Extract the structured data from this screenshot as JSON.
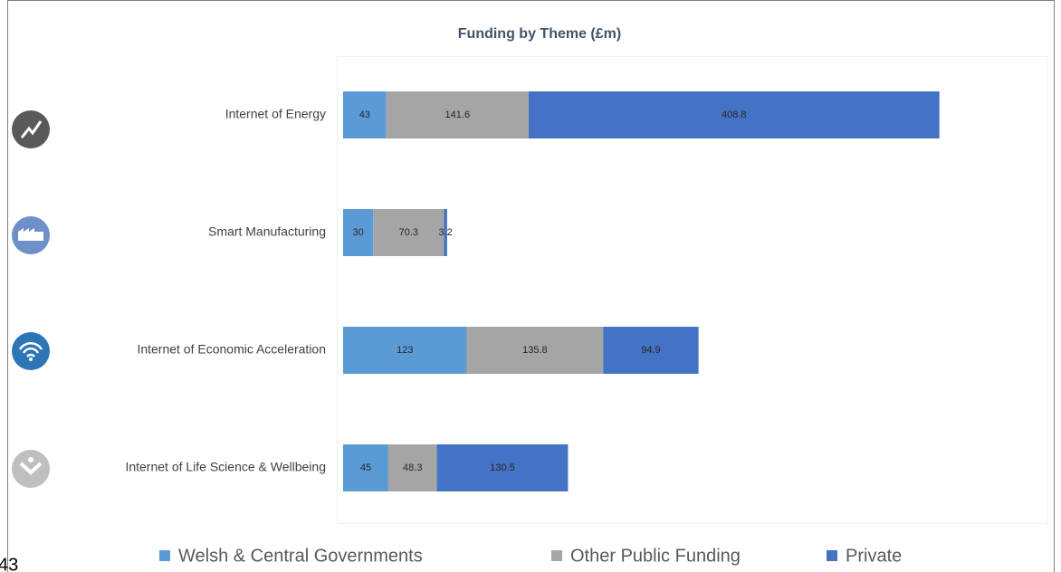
{
  "chart_data": {
    "type": "bar",
    "orientation": "horizontal",
    "stacked": true,
    "title": "Funding by Theme (£m)",
    "categories": [
      "Internet of Energy",
      "Smart Manufacturing",
      "Internet of Economic Acceleration",
      "Internet of Life Science & Wellbeing"
    ],
    "series": [
      {
        "name": "Welsh & Central Governments",
        "color": "#5b9bd5",
        "values": [
          43,
          30,
          123,
          45
        ]
      },
      {
        "name": "Other Public Funding",
        "color": "#a5a5a5",
        "values": [
          141.6,
          70.3,
          135.8,
          48.3
        ]
      },
      {
        "name": "Private",
        "color": "#4472c4",
        "values": [
          408.8,
          3.2,
          94.9,
          130.5
        ]
      }
    ],
    "xlim": [
      0,
      700
    ],
    "legend": "bottom",
    "footnote": "43"
  }
}
